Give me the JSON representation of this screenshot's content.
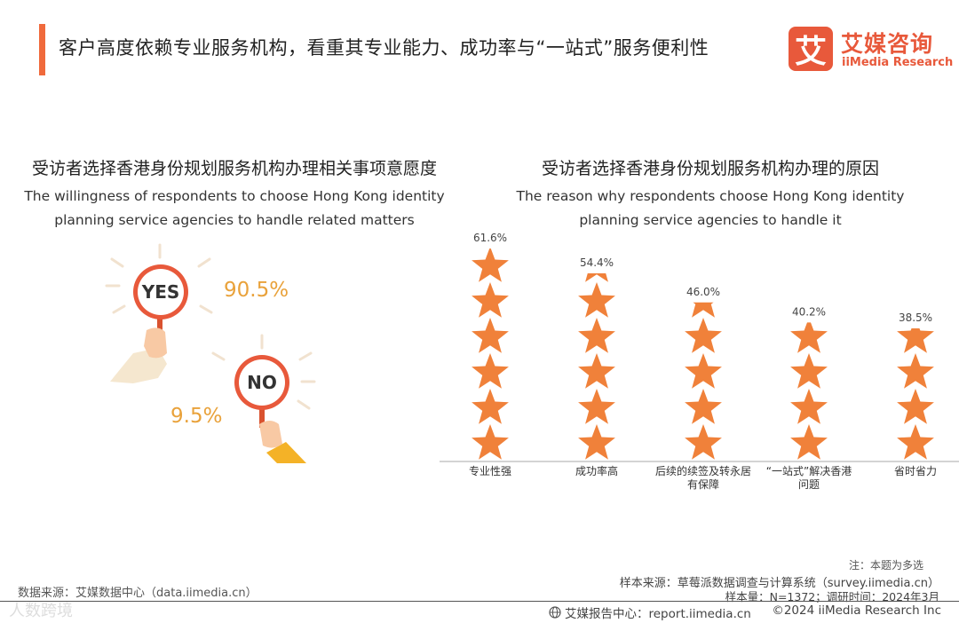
{
  "header": {
    "title": "客户高度依赖专业服务机构，看重其专业能力、成功率与“一站式”服务便利性"
  },
  "logo": {
    "mark": "艾",
    "cn": "艾媒咨询",
    "en": "iiMedia Research"
  },
  "left_panel": {
    "title_cn": "受访者选择香港身份规划服务机构办理相关事项意愿度",
    "title_en_line1": "The willingness of respondents to choose Hong Kong identity",
    "title_en_line2": "planning service agencies to handle related matters",
    "yes_label": "YES",
    "no_label": "NO",
    "yes_value": "90.5%",
    "no_value": "9.5%"
  },
  "right_panel": {
    "title_cn": "受访者选择香港身份规划服务机构办理的原因",
    "title_en_line1": "The reason why respondents choose Hong Kong identity",
    "title_en_line2": "planning service agencies to handle it"
  },
  "chart_data": [
    {
      "type": "pie",
      "title": "受访者选择香港身份规划服务机构办理相关事项意愿度",
      "categories": [
        "YES",
        "NO"
      ],
      "values": [
        90.5,
        9.5
      ],
      "unit": "%"
    },
    {
      "type": "bar",
      "title": "受访者选择香港身份规划服务机构办理的原因",
      "categories": [
        "专业性强",
        "成功率高",
        "后续的续签及转永居有保障",
        "“一站式”解决香港问题",
        "省时省力"
      ],
      "category_lines": [
        [
          "专业性强"
        ],
        [
          "成功率高"
        ],
        [
          "后续的续签及转永居",
          "有保障"
        ],
        [
          "“一站式”解决香港",
          "问题"
        ],
        [
          "省时省力"
        ]
      ],
      "values": [
        61.6,
        54.4,
        46.0,
        40.2,
        38.5
      ],
      "value_labels": [
        "61.6%",
        "54.4%",
        "46.0%",
        "40.2%",
        "38.5%"
      ],
      "ylim": [
        0,
        61.6
      ],
      "mark": "star-pictogram",
      "color": "#f0813a"
    }
  ],
  "notes": {
    "note": "注：本题为多选",
    "sample_source": "样本来源：草莓派数据调查与计算系统（survey.iimedia.cn）",
    "sample_size": "样本量：N=1372；调研时间：2024年3月",
    "data_source": "数据来源：艾媒数据中心（data.iimedia.cn）"
  },
  "footer": {
    "report_center": "艾媒报告中心：report.iimedia.cn",
    "copyright": "©2024  iiMedia Research  Inc",
    "watermark": "人数跨境"
  },
  "colors": {
    "accent": "#f06a3c",
    "brand": "#e8593b",
    "star": "#f0813a",
    "percent": "#e9a23b"
  }
}
